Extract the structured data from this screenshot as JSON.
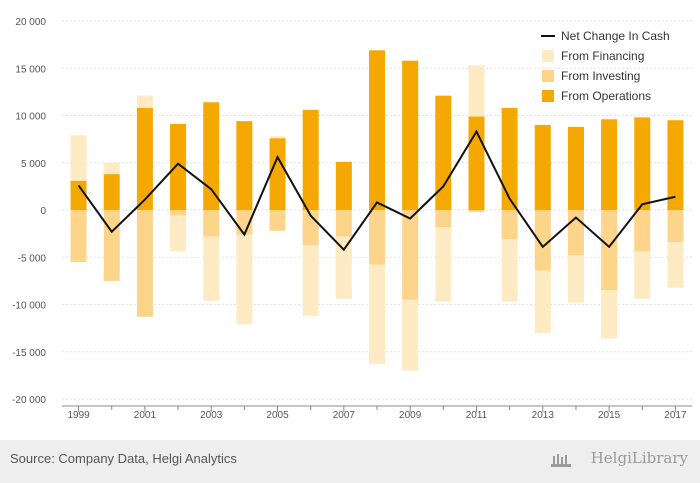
{
  "chart_data": {
    "type": "bar",
    "categories": [
      "1999",
      "2000",
      "2001",
      "2002",
      "2003",
      "2004",
      "2005",
      "2006",
      "2007",
      "2008",
      "2009",
      "2010",
      "2011",
      "2012",
      "2013",
      "2014",
      "2015",
      "2016",
      "2017"
    ],
    "x_tick_labels": [
      "1999",
      "2001",
      "2003",
      "2005",
      "2007",
      "2009",
      "2011",
      "2013",
      "2015",
      "2017"
    ],
    "y_tick_labels": [
      "20 000",
      "15 000",
      "10 000",
      "5 000",
      "0",
      "-5 000",
      "-10 000",
      "-15 000",
      "-20 000"
    ],
    "y_ticks": [
      20000,
      15000,
      10000,
      5000,
      0,
      -5000,
      -10000,
      -15000,
      -20000
    ],
    "ylim": [
      -20000,
      20000
    ],
    "grid": true,
    "legend_position": "top-right",
    "series": [
      {
        "name": "From Operations",
        "kind": "bar",
        "color": "#F5A800",
        "values": [
          3100,
          3800,
          10800,
          9100,
          11400,
          9400,
          7600,
          10600,
          5100,
          16900,
          15800,
          12100,
          9900,
          10800,
          9000,
          8800,
          9600,
          9800,
          9500
        ]
      },
      {
        "name": "From Investing",
        "kind": "bar",
        "color": "#FCD58A",
        "values": [
          -5500,
          -7500,
          -11300,
          -600,
          -2800,
          -2600,
          -2200,
          -3700,
          -2800,
          -5800,
          -9500,
          -1800,
          -200,
          -3100,
          -6400,
          -4800,
          -8500,
          -4400,
          -3400
        ]
      },
      {
        "name": "From Financing",
        "kind": "bar",
        "color": "#FEEBC4",
        "values": [
          4800,
          1200,
          1300,
          -3800,
          -6800,
          -9500,
          200,
          -7500,
          -6600,
          -10500,
          -7500,
          -7900,
          5400,
          -6600,
          -6600,
          -5000,
          -5100,
          -5000,
          -4800
        ]
      },
      {
        "name": "Net Change In Cash",
        "kind": "line",
        "color": "#111111",
        "values": [
          2600,
          -2300,
          1100,
          4900,
          2200,
          -2600,
          5600,
          -600,
          -4200,
          800,
          -900,
          2500,
          8300,
          1200,
          -3900,
          -800,
          -3900,
          600,
          1400
        ]
      }
    ]
  },
  "footer": {
    "source": "Source: Company Data, Helgi Analytics",
    "brand": "HelgiLibrary"
  }
}
